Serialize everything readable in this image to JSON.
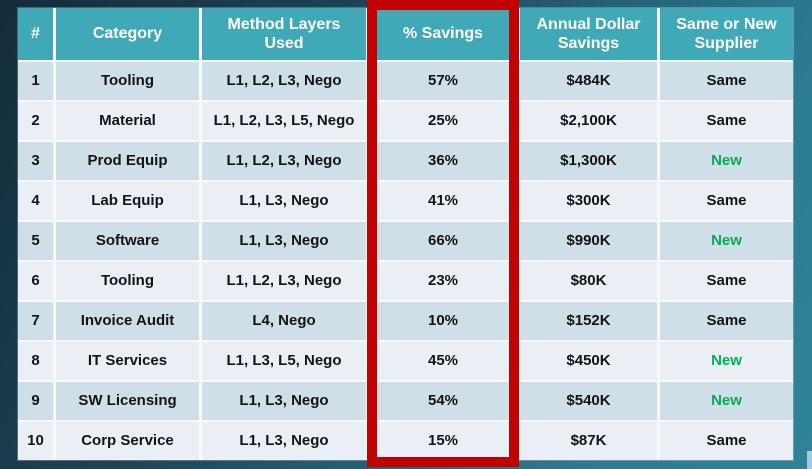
{
  "page": {
    "background_gradient_start": "#132c3a",
    "background_gradient_end": "#2f8398",
    "corner_accent_color": "#a3c9de"
  },
  "highlight": {
    "shape": "red-rectangle-outline",
    "color": "#c00202",
    "highlighted_column": "% Savings"
  },
  "chart_data": {
    "type": "table",
    "title": "",
    "columns": [
      "#",
      "Category",
      "Method Layers Used",
      "% Savings",
      "Annual Dollar Savings",
      "Same or New Supplier"
    ],
    "rows": [
      {
        "num": "1",
        "category": "Tooling",
        "method_layers": "L1, L2, L3, Nego",
        "savings_pct": "57%",
        "annual_savings": "$484K",
        "supplier": "Same"
      },
      {
        "num": "2",
        "category": "Material",
        "method_layers": "L1, L2, L3, L5, Nego",
        "savings_pct": "25%",
        "annual_savings": "$2,100K",
        "supplier": "Same"
      },
      {
        "num": "3",
        "category": "Prod Equip",
        "method_layers": "L1, L2, L3, Nego",
        "savings_pct": "36%",
        "annual_savings": "$1,300K",
        "supplier": "New"
      },
      {
        "num": "4",
        "category": "Lab Equip",
        "method_layers": "L1, L3, Nego",
        "savings_pct": "41%",
        "annual_savings": "$300K",
        "supplier": "Same"
      },
      {
        "num": "5",
        "category": "Software",
        "method_layers": "L1, L3, Nego",
        "savings_pct": "66%",
        "annual_savings": "$990K",
        "supplier": "New"
      },
      {
        "num": "6",
        "category": "Tooling",
        "method_layers": "L1, L2, L3, Nego",
        "savings_pct": "23%",
        "annual_savings": "$80K",
        "supplier": "Same"
      },
      {
        "num": "7",
        "category": "Invoice Audit",
        "method_layers": "L4, Nego",
        "savings_pct": "10%",
        "annual_savings": "$152K",
        "supplier": "Same"
      },
      {
        "num": "8",
        "category": "IT Services",
        "method_layers": "L1, L3, L5, Nego",
        "savings_pct": "45%",
        "annual_savings": "$450K",
        "supplier": "New"
      },
      {
        "num": "9",
        "category": "SW Licensing",
        "method_layers": "L1, L3, Nego",
        "savings_pct": "54%",
        "annual_savings": "$540K",
        "supplier": "New"
      },
      {
        "num": "10",
        "category": "Corp Service",
        "method_layers": "L1, L3, Nego",
        "savings_pct": "15%",
        "annual_savings": "$87K",
        "supplier": "Same"
      }
    ],
    "styles": {
      "header_bg": "#3fa9b8",
      "header_text": "#ffffff",
      "row_odd_bg": "#cfdfe8",
      "row_even_bg": "#e9eff4",
      "body_text": "#141414",
      "new_supplier_text": "#00b050"
    },
    "layout_hints": {
      "grid": "banded-rows",
      "legend_position": "none",
      "header_rows": 1
    }
  }
}
